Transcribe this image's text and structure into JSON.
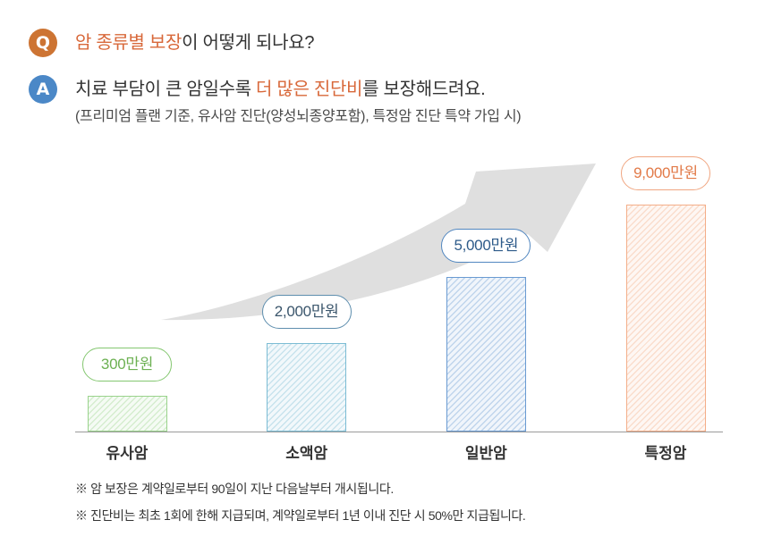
{
  "question": {
    "badge": "Q",
    "highlight": "암 종류별 보장",
    "text": "이 어떻게 되나요?"
  },
  "answer": {
    "badge": "A",
    "text_before": "치료 부담이 큰 암일수록 ",
    "highlight": "더 많은 진단비",
    "text_after": "를 보장해드려요.",
    "note": "(프리미엄 플랜 기준, 유사암 진단(양성뇌종양포함), 특정암 진단 특약 가입 시)"
  },
  "colors": {
    "q_badge": "#cd7433",
    "a_badge": "#4b88c7",
    "highlight": "#d8683a",
    "arrow": "#dfdfdf"
  },
  "chart_data": {
    "type": "bar",
    "categories": [
      "유사암",
      "소액암",
      "일반암",
      "특정암"
    ],
    "values": [
      300,
      2000,
      5000,
      9000
    ],
    "value_labels": [
      "300만원",
      "2,000만원",
      "5,000만원",
      "9,000만원"
    ],
    "grid": false,
    "bar_colors": [
      "#9ad38c",
      "#7cbcd4",
      "#6a9bd2",
      "#f4ae89"
    ],
    "label_colors": [
      "#6db153",
      "#3b566c",
      "#2e5b8a",
      "#e27a48"
    ],
    "label_border_colors": [
      "#84c770",
      "#5e8eae",
      "#5287c0",
      "#f0a681"
    ]
  },
  "footnotes": [
    "※ 암 보장은 계약일로부터 90일이 지난 다음날부터 개시됩니다.",
    "※ 진단비는 최초 1회에 한해 지급되며, 계약일로부터 1년 이내 진단 시 50%만 지급됩니다."
  ]
}
